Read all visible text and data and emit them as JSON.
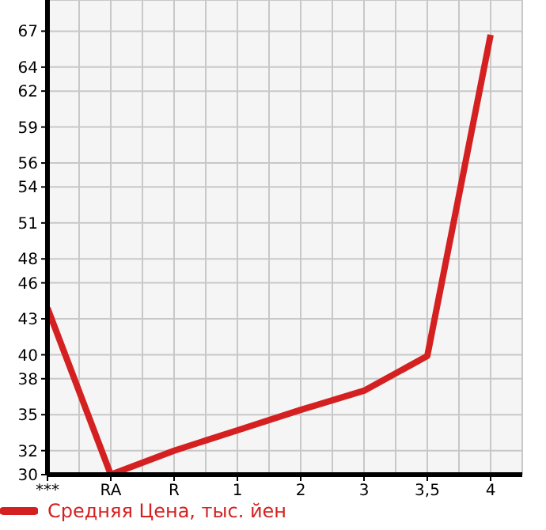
{
  "chart_data": {
    "type": "line",
    "categories": [
      "***",
      "RA",
      "R",
      "1",
      "2",
      "3",
      "3,5",
      "4"
    ],
    "series": [
      {
        "name": "Средняя Цена, тыс. йен",
        "color": "#d42020",
        "values": [
          43.9,
          30,
          32.0,
          33.7,
          35.4,
          37.0,
          39.9,
          66.7
        ]
      }
    ],
    "ylim": [
      30,
      69.6
    ],
    "yticks": [
      30,
      32,
      35,
      38,
      40,
      43,
      46,
      48,
      51,
      54,
      56,
      59,
      62,
      64,
      67
    ],
    "grid": true,
    "legend": "bottom left",
    "marker": "none",
    "line_style": "solid"
  }
}
